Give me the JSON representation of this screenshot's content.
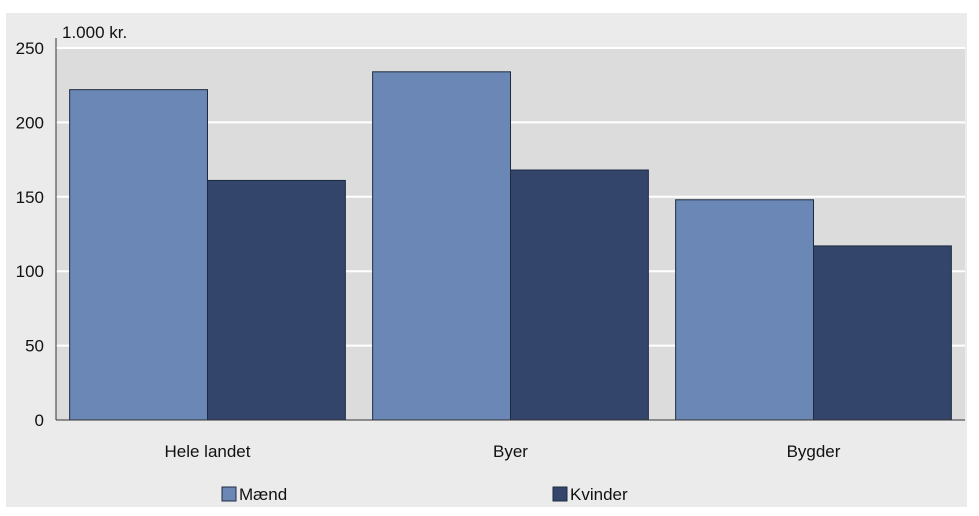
{
  "chart_data": {
    "type": "bar",
    "title": "",
    "xlabel": "",
    "ylabel": "",
    "unit_label": "1.000 kr.",
    "categories": [
      "Hele landet",
      "Byer",
      "Bygder"
    ],
    "series": [
      {
        "name": "Mænd",
        "values": [
          222,
          234,
          148
        ],
        "color": "#6b87b5"
      },
      {
        "name": "Kvinder",
        "values": [
          161,
          168,
          117
        ],
        "color": "#33456a"
      }
    ],
    "ylim": [
      0,
      250
    ],
    "yticks": [
      0,
      50,
      100,
      150,
      200,
      250
    ],
    "grid": true,
    "legend_position": "bottom",
    "colors": {
      "plot_background": "#dcdcdc",
      "frame_background": "#ebebeb",
      "gridline": "#ffffff"
    }
  }
}
